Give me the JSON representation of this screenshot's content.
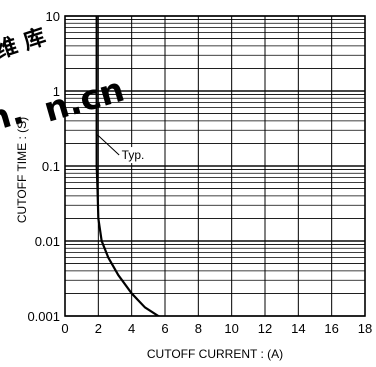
{
  "chart_data": {
    "type": "line",
    "title": "",
    "xlabel": "CUTOFF  CURRENT : (A)",
    "ylabel": "CUTOFF  TIME : (S)",
    "xlim": [
      0,
      18
    ],
    "ylim": [
      0.001,
      10
    ],
    "yscale": "log",
    "grid": true,
    "x_ticks": [
      "0",
      "2",
      "4",
      "6",
      "8",
      "10",
      "12",
      "14",
      "16",
      "18"
    ],
    "y_ticks": [
      "0.001",
      "0.01",
      "0.1",
      "1",
      "10"
    ],
    "series": [
      {
        "x": [
          1.9,
          1.9,
          1.9,
          1.95,
          2.0,
          2.2,
          2.6,
          3.2,
          4.0,
          4.8,
          5.6,
          6.4
        ],
        "y": [
          10,
          1,
          0.1,
          0.05,
          0.02,
          0.01,
          0.006,
          0.0035,
          0.002,
          0.0013,
          0.001,
          0.0008
        ]
      }
    ],
    "annotations": [
      {
        "text": "Typ."
      }
    ]
  },
  "watermark": {
    "text_red": "n.cn",
    "text_black": "n.",
    "text_cjk": "维 库",
    "color_red": "#e62020"
  }
}
